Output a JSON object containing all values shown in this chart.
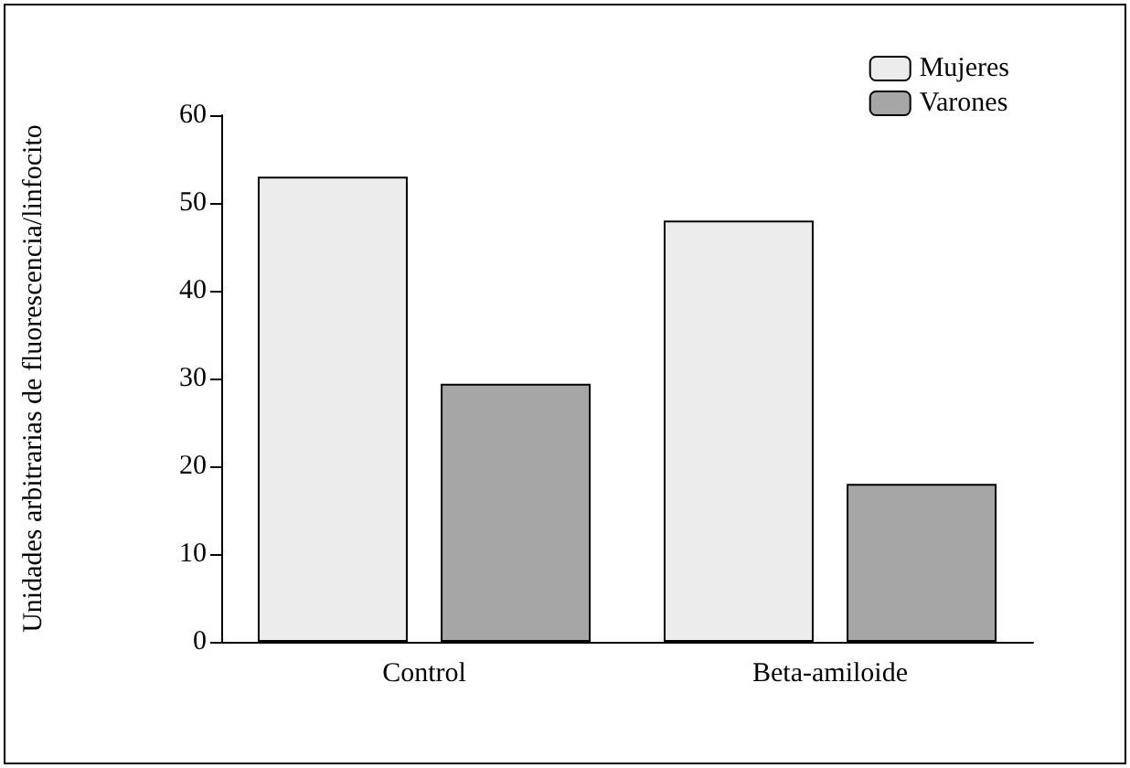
{
  "chart_data": {
    "type": "bar",
    "ylabel": "Unidades arbitrarias de fluorescencia/linfocito",
    "categories": [
      "Control",
      "Beta-amiloide"
    ],
    "series": [
      {
        "name": "Mujeres",
        "color": "#ececec",
        "values": [
          53,
          48
        ]
      },
      {
        "name": "Varones",
        "color": "#a6a6a6",
        "values": [
          29.4,
          18
        ]
      }
    ],
    "ylim": [
      0,
      60
    ],
    "yticks": [
      0,
      10,
      20,
      30,
      40,
      50,
      60
    ],
    "grid": false,
    "legend": "top right"
  }
}
